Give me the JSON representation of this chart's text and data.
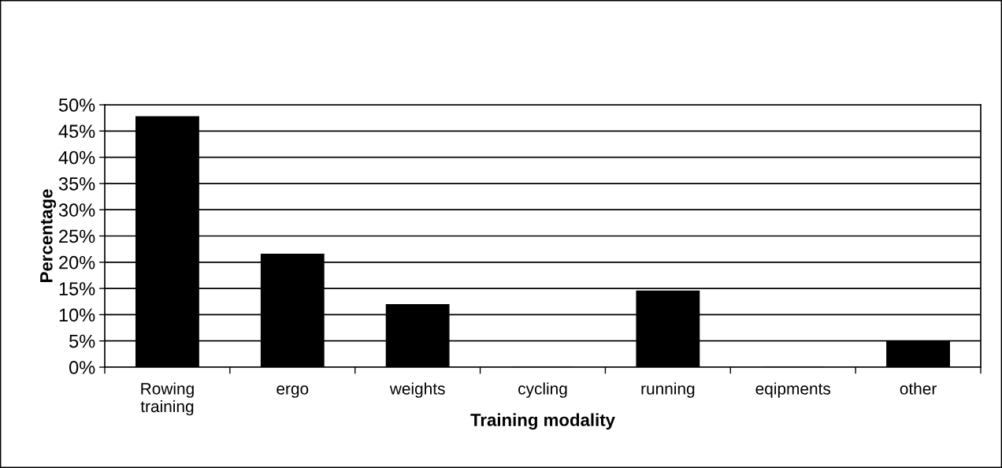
{
  "chart_data": {
    "type": "bar",
    "xlabel": "Training modality",
    "ylabel": "Percentage",
    "categories": [
      "Rowing\ntraining",
      "ergo",
      "weights",
      "cycling",
      "running",
      "eqipments",
      "other"
    ],
    "values": [
      47.7,
      21.5,
      11.9,
      0,
      14.5,
      0,
      4.9
    ],
    "color": "#000000",
    "ylim": [
      0,
      50
    ],
    "yticks": [
      {
        "value": 0,
        "label": "0%"
      },
      {
        "value": 5,
        "label": "5%"
      },
      {
        "value": 10,
        "label": "10%"
      },
      {
        "value": 15,
        "label": "15%"
      },
      {
        "value": 20,
        "label": "20%"
      },
      {
        "value": 25,
        "label": "25%"
      },
      {
        "value": 30,
        "label": "30%"
      },
      {
        "value": 35,
        "label": "35%"
      },
      {
        "value": 40,
        "label": "40%"
      },
      {
        "value": 45,
        "label": "45%"
      },
      {
        "value": 50,
        "label": "50%"
      }
    ],
    "grid": "y",
    "legend": false
  }
}
